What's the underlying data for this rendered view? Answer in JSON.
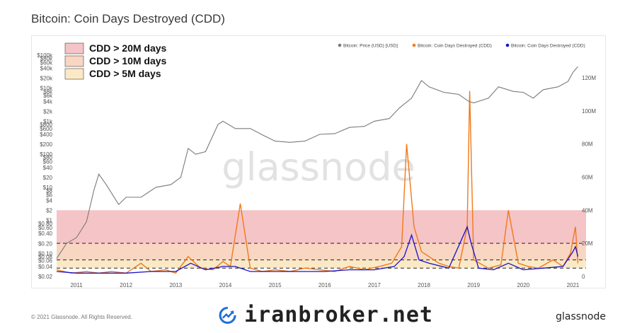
{
  "title": "Bitcoin: Coin Days Destroyed (CDD)",
  "footer": {
    "copyright": "© 2021 Glassnode. All Rights Reserved.",
    "brand": "glassnode",
    "watermark": "glassnode",
    "overlay_brand": "iranbroker.net"
  },
  "colors": {
    "price": "#7a7a7a",
    "cdd_orange": "#f07a1a",
    "cdd_blue": "#1b12c8",
    "band_20m": "#f5c4c6",
    "band_10m": "#f8d6c2",
    "band_5m": "#fbe9c6"
  },
  "chart_data": {
    "type": "line",
    "legend_position": "top-right",
    "legend": [
      {
        "name": "Bitcoin: Price (USD) [USD]",
        "color": "#7a7a7a"
      },
      {
        "name": "Bitcoin: Coin Days Destroyed (CDD)",
        "color": "#f07a1a"
      },
      {
        "name": "Bitcoin: Coin Days Destroyed (CDD)",
        "color": "#1b12c8"
      }
    ],
    "threshold_bands": [
      {
        "label": "CDD > 20M days",
        "threshold_m": 20,
        "color": "#f5c4c6"
      },
      {
        "label": "CDD > 10M days",
        "threshold_m": 10,
        "color": "#f8d6c2"
      },
      {
        "label": "CDD > 5M days",
        "threshold_m": 5,
        "color": "#fbe9c6"
      }
    ],
    "x_ticks": [
      "2011",
      "2012",
      "2013",
      "2014",
      "2015",
      "2016",
      "2017",
      "2018",
      "2019",
      "2020",
      "2021"
    ],
    "y_left_scale": "log",
    "y_left_ticks": [
      "$100k",
      "$80k",
      "$60k",
      "$40k",
      "$20k",
      "$10k",
      "$8k",
      "$6k",
      "$4k",
      "$2k",
      "$1k",
      "$800",
      "$600",
      "$400",
      "$200",
      "$100",
      "$80",
      "$60",
      "$40",
      "$20",
      "$10",
      "$8",
      "$6",
      "$4",
      "$2",
      "$1",
      "$0.80",
      "$0.60",
      "$0.40",
      "$0.20",
      "$0.10",
      "$0.08",
      "$0.06",
      "$0.04",
      "$0.02"
    ],
    "y_left_values": [
      100000,
      80000,
      60000,
      40000,
      20000,
      10000,
      8000,
      6000,
      4000,
      2000,
      1000,
      800,
      600,
      400,
      200,
      100,
      80,
      60,
      40,
      20,
      10,
      8,
      6,
      4,
      2,
      1,
      0.8,
      0.6,
      0.4,
      0.2,
      0.1,
      0.08,
      0.06,
      0.04,
      0.02
    ],
    "y_right_ticks": [
      "120M",
      "100M",
      "80M",
      "60M",
      "40M",
      "20M",
      "0"
    ],
    "y_right_values": [
      120,
      100,
      80,
      60,
      40,
      20,
      0
    ],
    "price_series": {
      "name": "Bitcoin: Price (USD) [USD]",
      "x": [
        2010.6,
        2010.8,
        2011.0,
        2011.2,
        2011.35,
        2011.45,
        2011.6,
        2011.85,
        2012.0,
        2012.3,
        2012.6,
        2012.9,
        2013.1,
        2013.25,
        2013.4,
        2013.6,
        2013.85,
        2013.95,
        2014.2,
        2014.5,
        2014.8,
        2015.0,
        2015.3,
        2015.6,
        2015.9,
        2016.2,
        2016.5,
        2016.8,
        2017.0,
        2017.3,
        2017.5,
        2017.75,
        2017.95,
        2018.1,
        2018.4,
        2018.7,
        2018.9,
        2019.0,
        2019.3,
        2019.5,
        2019.8,
        2020.0,
        2020.2,
        2020.4,
        2020.7,
        2020.9,
        2021.0,
        2021.1
      ],
      "y": [
        0.07,
        0.2,
        0.3,
        0.9,
        8,
        25,
        12,
        3,
        5,
        5,
        10,
        12,
        20,
        150,
        100,
        120,
        800,
        1000,
        600,
        600,
        350,
        250,
        230,
        250,
        400,
        420,
        650,
        700,
        1000,
        1200,
        2500,
        5000,
        17000,
        11000,
        7500,
        6500,
        4000,
        3600,
        5000,
        11000,
        8000,
        7500,
        5000,
        9000,
        11000,
        16000,
        30000,
        45000
      ]
    },
    "cdd_series": {
      "name": "Bitcoin: Coin Days Destroyed (CDD)",
      "unit": "M days",
      "x": [
        2010.6,
        2010.9,
        2011.2,
        2011.45,
        2011.7,
        2012.0,
        2012.3,
        2012.5,
        2012.8,
        2013.0,
        2013.25,
        2013.5,
        2013.75,
        2013.95,
        2014.1,
        2014.3,
        2014.5,
        2014.75,
        2015.0,
        2015.3,
        2015.6,
        2015.9,
        2016.2,
        2016.5,
        2016.8,
        2017.1,
        2017.35,
        2017.55,
        2017.65,
        2017.8,
        2017.95,
        2018.1,
        2018.3,
        2018.5,
        2018.7,
        2018.87,
        2018.92,
        2019.0,
        2019.3,
        2019.55,
        2019.7,
        2019.9,
        2020.1,
        2020.3,
        2020.6,
        2020.8,
        2020.95,
        2021.05,
        2021.1
      ],
      "y": [
        4,
        2,
        3,
        2,
        3,
        2,
        8,
        3,
        4,
        2,
        12,
        5,
        4,
        9,
        6,
        44,
        5,
        3,
        4,
        3,
        5,
        4,
        3,
        6,
        4,
        6,
        8,
        18,
        80,
        30,
        15,
        12,
        8,
        6,
        5,
        30,
        112,
        10,
        5,
        7,
        40,
        8,
        6,
        5,
        10,
        6,
        14,
        30,
        8
      ]
    },
    "cdd_ma_series": {
      "name": "Bitcoin: Coin Days Destroyed (CDD)",
      "unit": "M days",
      "x": [
        2010.6,
        2011.0,
        2011.5,
        2012.0,
        2012.5,
        2013.0,
        2013.3,
        2013.6,
        2013.95,
        2014.2,
        2014.5,
        2015.0,
        2015.5,
        2016.0,
        2016.5,
        2017.0,
        2017.4,
        2017.6,
        2017.75,
        2017.9,
        2018.1,
        2018.5,
        2018.87,
        2018.95,
        2019.1,
        2019.4,
        2019.7,
        2020.0,
        2020.4,
        2020.8,
        2021.0,
        2021.05,
        2021.1
      ],
      "y": [
        3,
        2,
        2,
        2,
        3,
        3,
        8,
        4,
        6,
        6,
        3,
        3,
        3,
        3,
        4,
        4,
        6,
        12,
        25,
        10,
        8,
        5,
        30,
        20,
        5,
        4,
        8,
        4,
        5,
        6,
        15,
        18,
        12
      ]
    }
  }
}
